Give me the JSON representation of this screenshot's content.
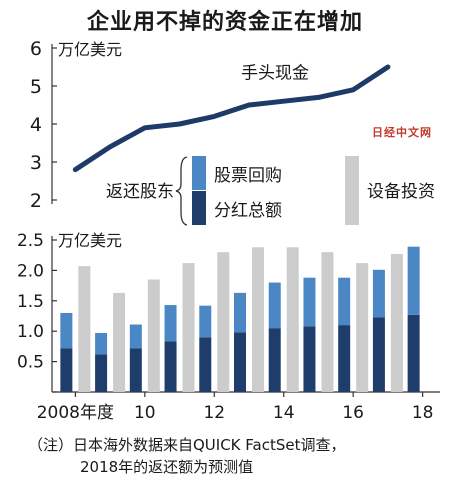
{
  "title": "企业用不掉的资金正在增加",
  "watermark": "日经中文网",
  "note_line1": "（注）日本海外数据来自QUICK FactSet调查，",
  "note_line2": "2018年的返还额为预测值",
  "colors": {
    "background": "#ffffff",
    "line": "#1e3a66",
    "buyback": "#4a87c4",
    "dividend": "#1f3d6b",
    "capex": "#cccccc",
    "text": "#1a1a1a",
    "axis": "#333333"
  },
  "chart_data": [
    {
      "type": "line",
      "unit": "万亿美元",
      "x": [
        2008,
        2009,
        2010,
        2011,
        2012,
        2013,
        2014,
        2015,
        2016,
        2017
      ],
      "series": [
        {
          "name": "手头现金",
          "values": [
            2.8,
            3.4,
            3.9,
            4.0,
            4.2,
            4.5,
            4.6,
            4.7,
            4.9,
            5.5
          ]
        }
      ],
      "ylim": [
        2,
        6
      ],
      "yticks": [
        "2",
        "3",
        "4",
        "5",
        "6"
      ],
      "grid": false
    },
    {
      "type": "bar",
      "unit": "万亿美元",
      "categories": [
        2008,
        2009,
        2010,
        2011,
        2012,
        2013,
        2014,
        2015,
        2016,
        2017,
        2018
      ],
      "xticks": [
        "2008年度",
        "10",
        "12",
        "14",
        "16",
        "18"
      ],
      "group_label": "返还股东",
      "series": [
        {
          "name": "分红总额",
          "values": [
            0.72,
            0.62,
            0.72,
            0.83,
            0.9,
            0.98,
            1.05,
            1.08,
            1.1,
            1.23,
            1.27
          ],
          "stack": "return"
        },
        {
          "name": "股票回购",
          "values": [
            0.58,
            0.35,
            0.39,
            0.6,
            0.52,
            0.65,
            0.75,
            0.8,
            0.78,
            0.78,
            1.12
          ],
          "stack": "return"
        },
        {
          "name": "设备投资",
          "values": [
            2.07,
            1.63,
            1.85,
            2.12,
            2.3,
            2.38,
            2.38,
            2.3,
            2.12,
            2.27,
            null
          ]
        }
      ],
      "ylim": [
        0,
        2.5
      ],
      "yticks": [
        "0",
        "0.5",
        "1.0",
        "1.5",
        "2.0",
        "2.5"
      ],
      "legend": "inside-top"
    }
  ]
}
